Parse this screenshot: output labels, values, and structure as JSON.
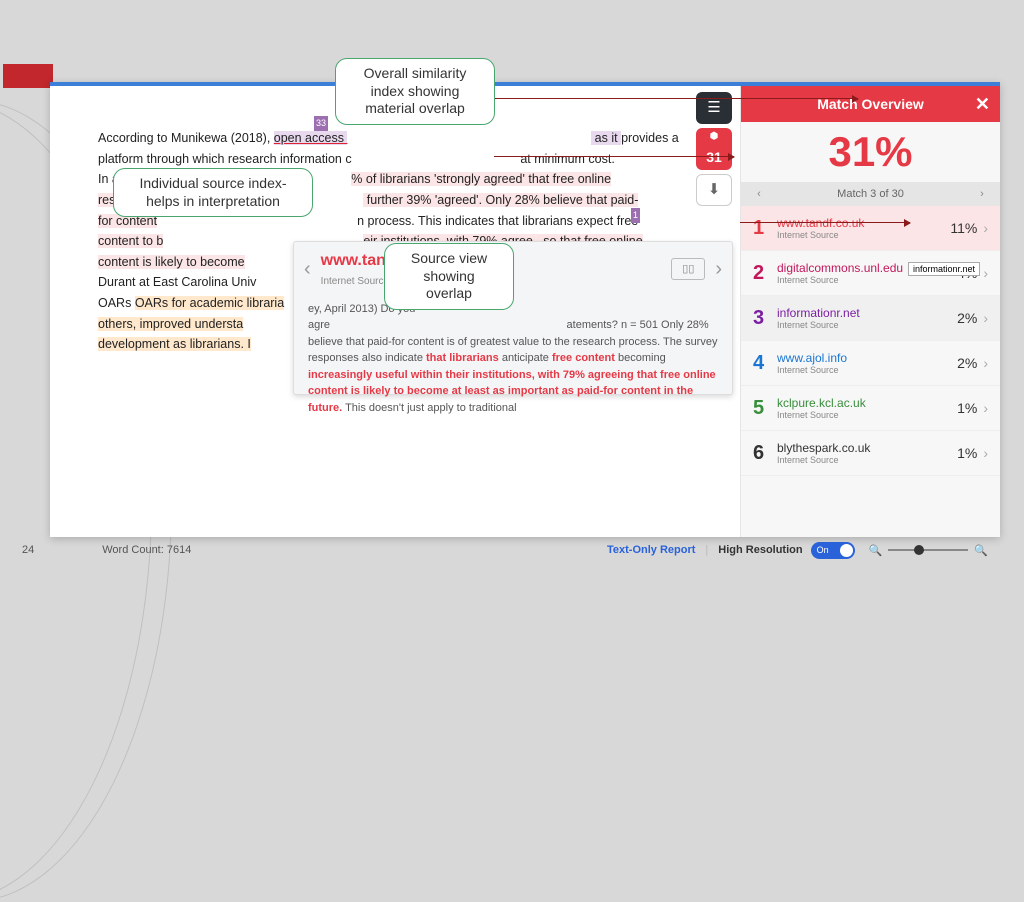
{
  "callouts": {
    "overall": "Overall similarity index showing material overlap",
    "individual": "Individual source index- helps in interpretation",
    "source": "Source view showing overlap"
  },
  "doc": {
    "line1a": "According to Munikewa (2018), ",
    "line1b": "open access ",
    "line1c": " as it ",
    "line1d": "provides a",
    "line2": "platform through which research information c",
    "line2b": "at minimum cost.",
    "line3a": "In  a  Taylo",
    "line3b": "% of librarians 'strongly agreed' that free online",
    "line4a": "resources a",
    "line4b": " further 39% 'agreed'. Only 28% believe that paid-",
    "line5a": "for content",
    "line5b": "n process. This indicates that librarians expect free",
    "line6a": "content to b",
    "line6b": "eir institutions, with 79% agree  , so that free online",
    "line7": "content is likely to become ",
    "line8": "Durant at East Carolina Univ",
    "line9": "OARs for academic libraria",
    "line10": "others,  improved  understa",
    "line11": "development as librarians. I",
    "ref33": "33",
    "ref1": "1"
  },
  "popup": {
    "title": "www.tandf.co",
    "sub": "Internet Source",
    "body_plain1": "ey, April 2013) Do you agre",
    "body_plain2": "atements? n = 501 Only 28% believe that paid-for content is of greatest value to the research process. The survey responses also indicate ",
    "m1": "that librarians",
    "plain3": " anticipate ",
    "m2": "free content",
    "plain4": " becoming ",
    "m3": "increasingly useful within their institutions, with 79% agreeing that free online content is likely to become at least as important as paid-for content in the future.",
    "plain5": " This doesn't just apply to traditional"
  },
  "toolbar": {
    "badge": "31"
  },
  "sidebar": {
    "title": "Match Overview",
    "percent": "31%",
    "nav": "Match 3 of 30",
    "items": [
      {
        "n": "1",
        "dom": "www.tandf.co.uk",
        "typ": "Internet Source",
        "pct": "11%",
        "color": "#e63946",
        "sel": true
      },
      {
        "n": "2",
        "dom": "digitalcommons.unl.edu",
        "typ": "Internet Source",
        "pct": "4%",
        "color": "#c2185b"
      },
      {
        "n": "3",
        "dom": "informationr.net",
        "typ": "Internet Source",
        "pct": "2%",
        "color": "#7b1fa2",
        "alt": true
      },
      {
        "n": "4",
        "dom": "www.ajol.info",
        "typ": "Internet Source",
        "pct": "2%",
        "color": "#1976d2"
      },
      {
        "n": "5",
        "dom": "kclpure.kcl.ac.uk",
        "typ": "Internet Source",
        "pct": "1%",
        "color": "#388e3c"
      },
      {
        "n": "6",
        "dom": "blythespark.co.uk",
        "typ": "Internet Source",
        "pct": "1%",
        "color": "#333"
      }
    ]
  },
  "tooltip": "informationr.net",
  "footer": {
    "page": "24",
    "wc": "Word Count: 7614",
    "tor": "Text-Only Report",
    "hr": "High Resolution",
    "toggle": "On"
  }
}
